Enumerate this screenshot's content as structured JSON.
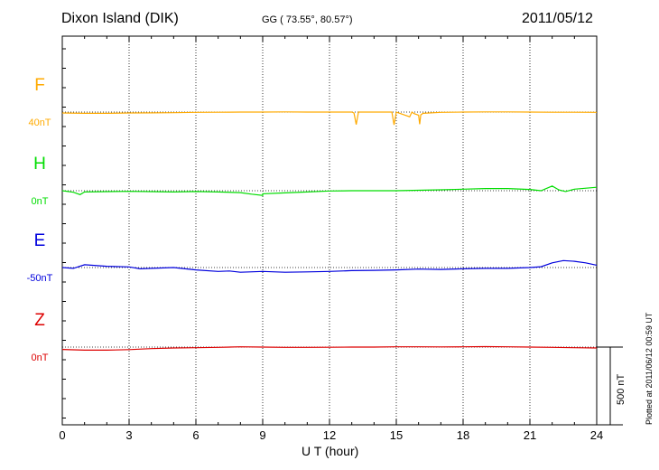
{
  "header": {
    "station": "Dixon Island (DIK)",
    "coords": "GG ( 73.55°,  80.57°)",
    "date": "2011/05/12"
  },
  "footer": {
    "plotted": "Plotted at 2011/06/12 00:59 UT"
  },
  "chart_data": {
    "type": "line",
    "xlabel": "U T (hour)",
    "xlim": [
      0,
      24
    ],
    "xticks": [
      "0",
      "3",
      "6",
      "9",
      "12",
      "15",
      "18",
      "21",
      "24"
    ],
    "grid": "vertical dotted lines at each 3 hours; dotted reference line per component",
    "scale_bar": "500 nT",
    "series": [
      {
        "name": "F",
        "offset": "40nT",
        "color": "#ffaa00",
        "x": [
          0,
          1,
          2,
          3,
          4,
          5,
          6,
          7,
          8,
          9,
          10,
          11,
          12,
          13,
          13.1,
          13.2,
          13.3,
          14,
          14.8,
          14.9,
          15,
          15.6,
          15.7,
          15.8,
          16,
          16.05,
          16.1,
          16.2,
          17,
          18,
          19,
          20,
          21,
          22,
          23,
          24
        ],
        "y": [
          -6,
          -8,
          -8,
          -6,
          -5,
          -4,
          -2,
          -1,
          0,
          0,
          1,
          0,
          0,
          0,
          -6,
          -80,
          0,
          0,
          0,
          -82,
          0,
          -30,
          0,
          -10,
          -20,
          -78,
          -18,
          -8,
          -2,
          0,
          1,
          1,
          0,
          -1,
          -1,
          -2
        ]
      },
      {
        "name": "H",
        "offset": "0nT",
        "color": "#00dd00",
        "x": [
          0,
          0.5,
          0.8,
          1,
          2,
          3,
          4,
          5,
          6,
          7,
          8,
          8.5,
          9,
          9,
          10,
          11,
          12,
          13,
          14,
          15,
          16,
          17,
          18,
          19,
          20,
          21,
          21.5,
          22,
          22.3,
          22.6,
          23,
          24
        ],
        "y": [
          0,
          -10,
          -25,
          -8,
          -6,
          -4,
          -6,
          -8,
          -5,
          -8,
          -12,
          -22,
          -30,
          -20,
          -14,
          -8,
          -2,
          0,
          0,
          0,
          3,
          6,
          10,
          14,
          14,
          8,
          0,
          30,
          5,
          -5,
          10,
          22
        ]
      },
      {
        "name": "E",
        "offset": "-50nT",
        "color": "#0000dd",
        "x": [
          0,
          0.5,
          1,
          2,
          3,
          3.5,
          4,
          5,
          6,
          7,
          7.5,
          8,
          9,
          10,
          11,
          12,
          13,
          14,
          15,
          16,
          17,
          18,
          19,
          20,
          21,
          21.5,
          22,
          22.5,
          23,
          23.5,
          24
        ],
        "y": [
          0,
          -5,
          18,
          8,
          4,
          -8,
          -5,
          0,
          -15,
          -25,
          -22,
          -30,
          -25,
          -30,
          -28,
          -25,
          -20,
          -18,
          -15,
          -10,
          -12,
          -8,
          -5,
          -5,
          0,
          5,
          30,
          45,
          40,
          30,
          15
        ]
      },
      {
        "name": "Z",
        "offset": "0nT",
        "color": "#dd0000",
        "x": [
          0,
          1,
          2,
          3,
          4,
          5,
          6,
          7,
          8,
          9,
          10,
          11,
          12,
          13,
          14,
          15,
          16,
          17,
          18,
          19,
          20,
          21,
          22,
          23,
          24
        ],
        "y": [
          -15,
          -20,
          -20,
          -16,
          -10,
          -6,
          -4,
          -2,
          2,
          0,
          -2,
          -2,
          -1,
          0,
          0,
          2,
          2,
          1,
          2,
          3,
          2,
          0,
          -2,
          -4,
          -6
        ]
      }
    ]
  }
}
